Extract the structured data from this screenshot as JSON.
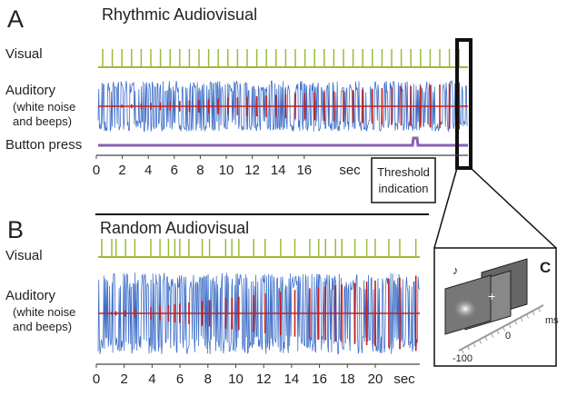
{
  "panel_a": {
    "label": "A",
    "title": "Rhythmic Audiovisual",
    "visual_label": "Visual",
    "auditory_label": [
      "Auditory",
      "(white noise",
      "and beeps)"
    ],
    "button_label": "Button press",
    "axis_ticks": [
      0,
      2,
      4,
      6,
      8,
      10,
      12,
      14,
      16
    ],
    "axis_unit": "sec",
    "annotation": [
      "Threshold",
      "indication"
    ]
  },
  "panel_b": {
    "label": "B",
    "title": "Random Audiovisual",
    "visual_label": "Visual",
    "auditory_label": [
      "Auditory",
      "(white noise",
      "and beeps)"
    ],
    "axis_ticks": [
      0,
      2,
      4,
      6,
      8,
      10,
      12,
      14,
      16,
      18,
      20
    ],
    "axis_unit": "sec"
  },
  "panel_c": {
    "label": "C",
    "axis_unit": "ms",
    "axis_ticks": [
      0,
      -100
    ]
  }
}
